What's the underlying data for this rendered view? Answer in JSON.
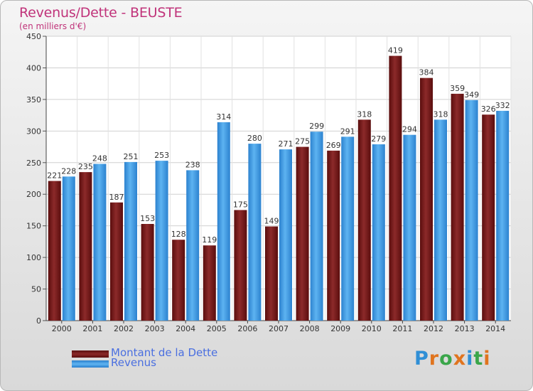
{
  "title": "Revenus/Dette - BEUSTE",
  "subtitle": "(en milliers d'€)",
  "brand": "Proxiti",
  "colors": {
    "dette": "#7a1a1a",
    "revenus": "#3a9be6",
    "title": "#c0337a",
    "legend_text": "#4a6fe0"
  },
  "chart_data": {
    "type": "bar",
    "categories": [
      "2000",
      "2001",
      "2002",
      "2003",
      "2004",
      "2005",
      "2006",
      "2007",
      "2008",
      "2009",
      "2010",
      "2011",
      "2012",
      "2013",
      "2014"
    ],
    "series": [
      {
        "name": "Montant de la Dette",
        "values": [
          221,
          235,
          187,
          153,
          128,
          119,
          175,
          149,
          275,
          269,
          318,
          419,
          384,
          359,
          326
        ]
      },
      {
        "name": "Revenus",
        "values": [
          228,
          248,
          251,
          253,
          238,
          314,
          280,
          271,
          299,
          291,
          279,
          294,
          318,
          349,
          332
        ]
      }
    ],
    "ylim": [
      0,
      450
    ],
    "yticks": [
      0,
      50,
      100,
      150,
      200,
      250,
      300,
      350,
      400,
      450
    ],
    "grid": true,
    "legend": "bottom-left"
  }
}
